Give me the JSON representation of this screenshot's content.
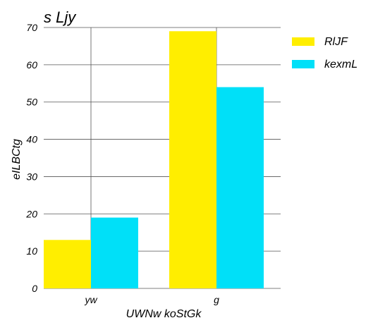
{
  "chart_data": {
    "type": "bar",
    "title": "s Ljy",
    "xlabel": "UWNw koStGk",
    "ylabel": "eILBCtg",
    "categories": [
      "yw",
      "g"
    ],
    "series": [
      {
        "name": "RlJF",
        "values": [
          13,
          69
        ],
        "color": "#ffee00"
      },
      {
        "name": "kexmL",
        "values": [
          19,
          54
        ],
        "color": "#00e0f8"
      }
    ],
    "ylim": [
      0,
      70
    ],
    "yticks": [
      0,
      10,
      20,
      30,
      40,
      50,
      60,
      70
    ],
    "grid": true,
    "legend": "top-right"
  }
}
